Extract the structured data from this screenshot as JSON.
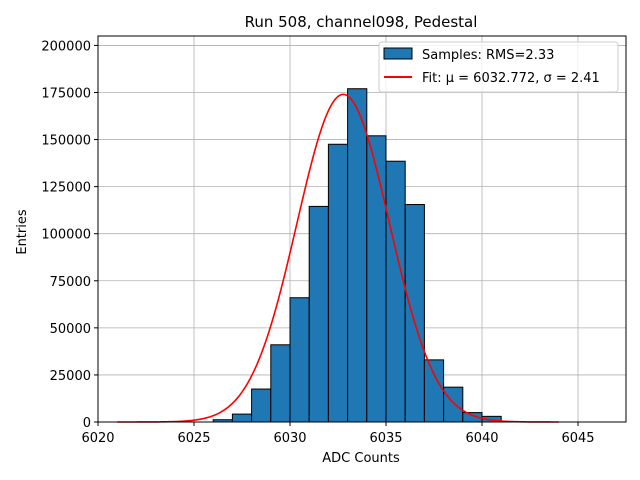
{
  "chart_data": {
    "type": "bar",
    "title": "Run 508, channel098, Pedestal",
    "xlabel": "ADC Counts",
    "ylabel": "Entries",
    "xlim": [
      6020,
      6047.5
    ],
    "ylim": [
      0,
      205000
    ],
    "xticks": [
      6020,
      6025,
      6030,
      6035,
      6040,
      6045
    ],
    "yticks": [
      0,
      25000,
      50000,
      75000,
      100000,
      125000,
      150000,
      175000,
      200000
    ],
    "grid": true,
    "legend_position": "top-right",
    "bin_width": 1,
    "bins": [
      {
        "x": 6025,
        "value": 0
      },
      {
        "x": 6026,
        "value": 1200
      },
      {
        "x": 6027,
        "value": 4200
      },
      {
        "x": 6028,
        "value": 17500
      },
      {
        "x": 6029,
        "value": 41000
      },
      {
        "x": 6030,
        "value": 66000
      },
      {
        "x": 6031,
        "value": 114500
      },
      {
        "x": 6032,
        "value": 147500
      },
      {
        "x": 6033,
        "value": 177000
      },
      {
        "x": 6034,
        "value": 152000
      },
      {
        "x": 6035,
        "value": 138500
      },
      {
        "x": 6036,
        "value": 115500
      },
      {
        "x": 6037,
        "value": 33000
      },
      {
        "x": 6038,
        "value": 18500
      },
      {
        "x": 6039,
        "value": 5000
      },
      {
        "x": 6040,
        "value": 3000
      }
    ],
    "series": [
      {
        "name": "Samples: RMS=2.33",
        "kind": "histogram",
        "color": "#1f77b4"
      },
      {
        "name": "Fit: μ = 6032.772, σ = 2.41",
        "kind": "gaussian",
        "color": "#ff0000",
        "mu": 6032.772,
        "sigma": 2.41,
        "amplitude": 174000,
        "x_range": [
          6021,
          6044
        ]
      }
    ]
  }
}
